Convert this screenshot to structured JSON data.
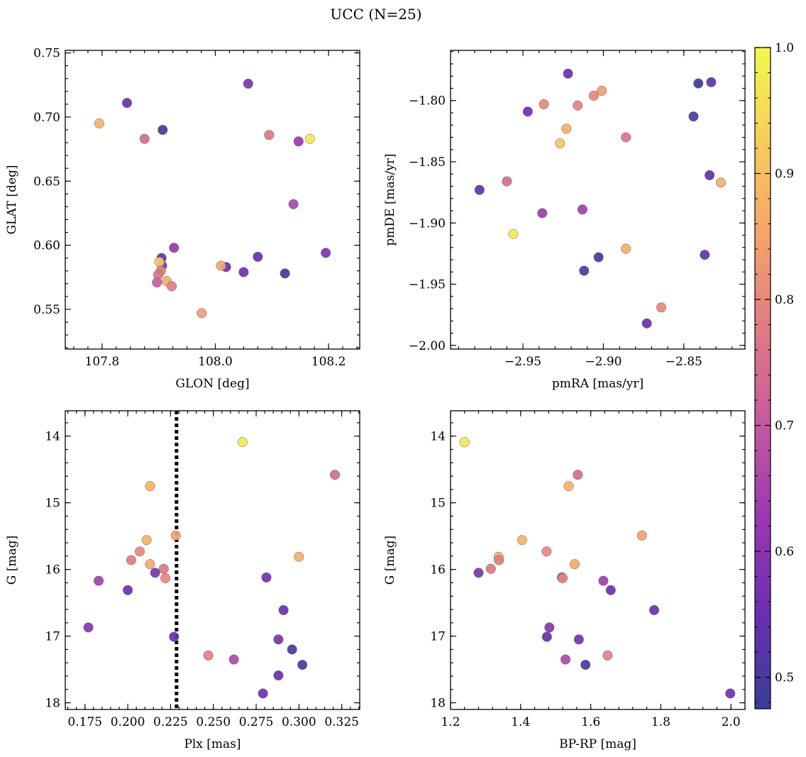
{
  "figure": {
    "title": "UCC (N=25)"
  },
  "colorbar": {
    "vmin": 0.475,
    "vmax": 1.0,
    "ticks": [
      0.5,
      0.6,
      0.7,
      0.8,
      0.9,
      1.0
    ],
    "tick_labels": [
      "0.5",
      "0.6",
      "0.7",
      "0.8",
      "0.9",
      "1.0"
    ],
    "colormap": "plasma",
    "stops": [
      "#3a3d98",
      "#6a2fb0",
      "#9a37b2",
      "#c559a0",
      "#e07a84",
      "#f5a36a",
      "#f8cc5c",
      "#f1f94c"
    ]
  },
  "chart_data": [
    {
      "type": "scatter",
      "xlabel": "GLON [deg]",
      "ylabel": "GLAT [deg]",
      "xlim": [
        107.735,
        108.255
      ],
      "ylim": [
        0.519,
        0.752
      ],
      "y_inverted": false,
      "xticks": [
        107.8,
        108.0,
        108.2
      ],
      "xtick_labels": [
        "107.8",
        "108.0",
        "108.2"
      ],
      "yticks": [
        0.55,
        0.6,
        0.65,
        0.7,
        0.75
      ],
      "ytick_labels": [
        "0.55",
        "0.60",
        "0.65",
        "0.70",
        "0.75"
      ],
      "x_minor_step": 0.025,
      "y_minor_step": 0.01,
      "points": [
        {
          "x": 107.795,
          "y": 0.695,
          "c": 0.88
        },
        {
          "x": 107.844,
          "y": 0.711,
          "c": 0.55
        },
        {
          "x": 107.875,
          "y": 0.683,
          "c": 0.74
        },
        {
          "x": 107.907,
          "y": 0.69,
          "c": 0.48
        },
        {
          "x": 108.058,
          "y": 0.726,
          "c": 0.58
        },
        {
          "x": 108.095,
          "y": 0.686,
          "c": 0.77
        },
        {
          "x": 108.147,
          "y": 0.681,
          "c": 0.62
        },
        {
          "x": 108.167,
          "y": 0.683,
          "c": 0.97
        },
        {
          "x": 108.138,
          "y": 0.632,
          "c": 0.66
        },
        {
          "x": 108.195,
          "y": 0.594,
          "c": 0.58
        },
        {
          "x": 108.123,
          "y": 0.578,
          "c": 0.49
        },
        {
          "x": 108.075,
          "y": 0.591,
          "c": 0.54
        },
        {
          "x": 108.05,
          "y": 0.579,
          "c": 0.56
        },
        {
          "x": 108.019,
          "y": 0.583,
          "c": 0.55
        },
        {
          "x": 108.01,
          "y": 0.584,
          "c": 0.86
        },
        {
          "x": 107.976,
          "y": 0.547,
          "c": 0.84
        },
        {
          "x": 107.927,
          "y": 0.598,
          "c": 0.62
        },
        {
          "x": 107.905,
          "y": 0.59,
          "c": 0.54
        },
        {
          "x": 107.906,
          "y": 0.584,
          "c": 0.58
        },
        {
          "x": 107.901,
          "y": 0.587,
          "c": 0.92
        },
        {
          "x": 107.904,
          "y": 0.58,
          "c": 0.8
        },
        {
          "x": 107.899,
          "y": 0.577,
          "c": 0.76
        },
        {
          "x": 107.897,
          "y": 0.571,
          "c": 0.71
        },
        {
          "x": 107.914,
          "y": 0.572,
          "c": 0.87
        },
        {
          "x": 107.923,
          "y": 0.568,
          "c": 0.78
        }
      ]
    },
    {
      "type": "scatter",
      "xlabel": "pmRA [mas/yr]",
      "ylabel": "pmDE [mas/yr]",
      "xlim": [
        -2.995,
        -2.812
      ],
      "ylim": [
        -2.003,
        -1.759
      ],
      "y_inverted": false,
      "xticks": [
        -2.95,
        -2.9,
        -2.85
      ],
      "xtick_labels": [
        "−2.95",
        "−2.90",
        "−2.85"
      ],
      "yticks": [
        -2.0,
        -1.95,
        -1.9,
        -1.85,
        -1.8
      ],
      "ytick_labels": [
        "−2.00",
        "−1.95",
        "−1.90",
        "−1.85",
        "−1.80"
      ],
      "x_minor_step": 0.01,
      "y_minor_step": 0.01,
      "points": [
        {
          "x": -2.977,
          "y": -1.873,
          "c": 0.53
        },
        {
          "x": -2.96,
          "y": -1.866,
          "c": 0.75
        },
        {
          "x": -2.947,
          "y": -1.809,
          "c": 0.56
        },
        {
          "x": -2.938,
          "y": -1.892,
          "c": 0.63
        },
        {
          "x": -2.937,
          "y": -1.803,
          "c": 0.8
        },
        {
          "x": -2.922,
          "y": -1.778,
          "c": 0.55
        },
        {
          "x": -2.923,
          "y": -1.823,
          "c": 0.87
        },
        {
          "x": -2.927,
          "y": -1.835,
          "c": 0.91
        },
        {
          "x": -2.916,
          "y": -1.804,
          "c": 0.79
        },
        {
          "x": -2.913,
          "y": -1.889,
          "c": 0.64
        },
        {
          "x": -2.906,
          "y": -1.796,
          "c": 0.8
        },
        {
          "x": -2.901,
          "y": -1.792,
          "c": 0.84
        },
        {
          "x": -2.956,
          "y": -1.909,
          "c": 0.97
        },
        {
          "x": -2.903,
          "y": -1.928,
          "c": 0.49
        },
        {
          "x": -2.912,
          "y": -1.939,
          "c": 0.51
        },
        {
          "x": -2.886,
          "y": -1.83,
          "c": 0.76
        },
        {
          "x": -2.886,
          "y": -1.921,
          "c": 0.87
        },
        {
          "x": -2.873,
          "y": -1.982,
          "c": 0.56
        },
        {
          "x": -2.864,
          "y": -1.969,
          "c": 0.8
        },
        {
          "x": -2.841,
          "y": -1.786,
          "c": 0.48
        },
        {
          "x": -2.833,
          "y": -1.785,
          "c": 0.53
        },
        {
          "x": -2.844,
          "y": -1.813,
          "c": 0.51
        },
        {
          "x": -2.834,
          "y": -1.861,
          "c": 0.52
        },
        {
          "x": -2.837,
          "y": -1.926,
          "c": 0.54
        },
        {
          "x": -2.827,
          "y": -1.867,
          "c": 0.87
        }
      ]
    },
    {
      "type": "scatter",
      "xlabel": "Plx [mas]",
      "ylabel": "G [mag]",
      "xlim": [
        0.1635,
        0.3355
      ],
      "ylim": [
        18.1,
        13.62
      ],
      "y_inverted": true,
      "xticks": [
        0.175,
        0.2,
        0.225,
        0.25,
        0.275,
        0.3,
        0.325
      ],
      "xtick_labels": [
        "0.175",
        "0.200",
        "0.225",
        "0.250",
        "0.275",
        "0.300",
        "0.325"
      ],
      "yticks": [
        14,
        15,
        16,
        17,
        18
      ],
      "ytick_labels": [
        "14",
        "15",
        "16",
        "17",
        "18"
      ],
      "x_minor_step": 0.005,
      "y_minor_step": 0.2,
      "vline": {
        "x": 0.2285,
        "style": "dotted",
        "color": "#000000"
      },
      "points": [
        {
          "x": 0.177,
          "y": 16.87,
          "c": 0.6
        },
        {
          "x": 0.183,
          "y": 16.17,
          "c": 0.64
        },
        {
          "x": 0.2,
          "y": 16.31,
          "c": 0.55
        },
        {
          "x": 0.202,
          "y": 15.86,
          "c": 0.78
        },
        {
          "x": 0.207,
          "y": 15.73,
          "c": 0.8
        },
        {
          "x": 0.211,
          "y": 15.56,
          "c": 0.88
        },
        {
          "x": 0.213,
          "y": 14.75,
          "c": 0.88
        },
        {
          "x": 0.213,
          "y": 15.92,
          "c": 0.86
        },
        {
          "x": 0.216,
          "y": 16.05,
          "c": 0.58
        },
        {
          "x": 0.221,
          "y": 15.99,
          "c": 0.77
        },
        {
          "x": 0.222,
          "y": 16.13,
          "c": 0.8
        },
        {
          "x": 0.228,
          "y": 15.49,
          "c": 0.85
        },
        {
          "x": 0.227,
          "y": 17.01,
          "c": 0.54
        },
        {
          "x": 0.247,
          "y": 17.29,
          "c": 0.79
        },
        {
          "x": 0.262,
          "y": 17.35,
          "c": 0.66
        },
        {
          "x": 0.267,
          "y": 14.09,
          "c": 0.97
        },
        {
          "x": 0.279,
          "y": 17.86,
          "c": 0.56
        },
        {
          "x": 0.281,
          "y": 16.12,
          "c": 0.56
        },
        {
          "x": 0.288,
          "y": 17.05,
          "c": 0.57
        },
        {
          "x": 0.288,
          "y": 17.59,
          "c": 0.55
        },
        {
          "x": 0.291,
          "y": 16.61,
          "c": 0.55
        },
        {
          "x": 0.296,
          "y": 17.2,
          "c": 0.5
        },
        {
          "x": 0.3,
          "y": 15.81,
          "c": 0.87
        },
        {
          "x": 0.302,
          "y": 17.43,
          "c": 0.5
        },
        {
          "x": 0.321,
          "y": 14.58,
          "c": 0.74
        }
      ]
    },
    {
      "type": "scatter",
      "xlabel": "BP-RP [mag]",
      "ylabel": "G [mag]",
      "xlim": [
        1.2,
        2.04
      ],
      "ylim": [
        18.1,
        13.62
      ],
      "y_inverted": true,
      "xticks": [
        1.2,
        1.4,
        1.6,
        1.8,
        2.0
      ],
      "xtick_labels": [
        "1.2",
        "1.4",
        "1.6",
        "1.8",
        "2.0"
      ],
      "yticks": [
        14,
        15,
        16,
        17,
        18
      ],
      "ytick_labels": [
        "14",
        "15",
        "16",
        "17",
        "18"
      ],
      "x_minor_step": 0.04,
      "y_minor_step": 0.2,
      "points": [
        {
          "x": 1.24,
          "y": 14.09,
          "c": 0.97
        },
        {
          "x": 1.28,
          "y": 16.05,
          "c": 0.58
        },
        {
          "x": 1.315,
          "y": 15.99,
          "c": 0.77
        },
        {
          "x": 1.337,
          "y": 15.81,
          "c": 0.87
        },
        {
          "x": 1.338,
          "y": 15.86,
          "c": 0.78
        },
        {
          "x": 1.404,
          "y": 15.56,
          "c": 0.88
        },
        {
          "x": 1.474,
          "y": 15.73,
          "c": 0.8
        },
        {
          "x": 1.475,
          "y": 17.01,
          "c": 0.54
        },
        {
          "x": 1.482,
          "y": 16.87,
          "c": 0.6
        },
        {
          "x": 1.518,
          "y": 16.12,
          "c": 0.56
        },
        {
          "x": 1.52,
          "y": 16.13,
          "c": 0.8
        },
        {
          "x": 1.528,
          "y": 17.35,
          "c": 0.66
        },
        {
          "x": 1.537,
          "y": 14.75,
          "c": 0.88
        },
        {
          "x": 1.554,
          "y": 15.92,
          "c": 0.86
        },
        {
          "x": 1.563,
          "y": 14.58,
          "c": 0.74
        },
        {
          "x": 1.566,
          "y": 17.05,
          "c": 0.57
        },
        {
          "x": 1.585,
          "y": 17.43,
          "c": 0.5
        },
        {
          "x": 1.636,
          "y": 16.17,
          "c": 0.64
        },
        {
          "x": 1.648,
          "y": 17.29,
          "c": 0.79
        },
        {
          "x": 1.657,
          "y": 16.31,
          "c": 0.55
        },
        {
          "x": 1.746,
          "y": 15.49,
          "c": 0.85
        },
        {
          "x": 1.781,
          "y": 16.61,
          "c": 0.55
        },
        {
          "x": 1.998,
          "y": 17.86,
          "c": 0.56
        }
      ]
    }
  ]
}
